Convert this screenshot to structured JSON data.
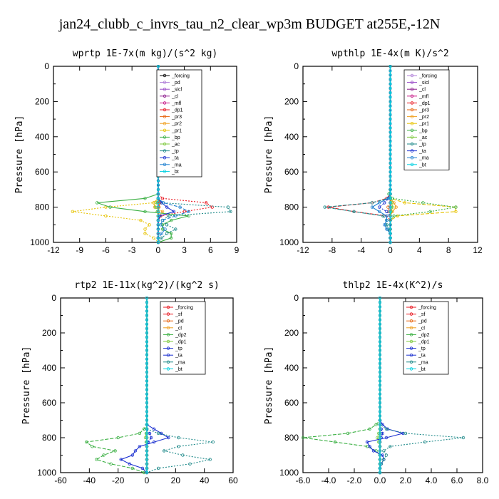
{
  "title": "jan24_clubb_c_invrs_tau_n2_clear_wp3m  BUDGET at255E,-12N",
  "chart_data": [
    {
      "type": "line",
      "title": "wprtp  1E-7x(m kg)/(s^2 kg)",
      "ylabel": "Pressure [hPa]",
      "xlim": [
        -12,
        9
      ],
      "xticks": [
        -12,
        -9,
        -6,
        -3,
        0,
        3,
        6,
        9
      ],
      "xtick_labels": [
        "-12",
        "-9",
        "-6",
        "-3",
        "0",
        "3",
        "6",
        "9"
      ],
      "ylim": [
        1000,
        0
      ],
      "yticks": [
        0,
        200,
        400,
        600,
        800,
        1000
      ],
      "y": [
        725,
        750,
        775,
        800,
        825,
        850,
        875,
        900,
        925,
        950,
        975,
        1000
      ],
      "legend_position": "upper-right-inside",
      "series": [
        {
          "name": "_forcing",
          "color": "#000000",
          "values": [
            0,
            0,
            0,
            0,
            0,
            0,
            0,
            0,
            0,
            0,
            0,
            0
          ]
        },
        {
          "name": "_pd",
          "color": "#b07fd8",
          "values": [
            0,
            0,
            0,
            0,
            0,
            0,
            0,
            0,
            0,
            0,
            0,
            0
          ]
        },
        {
          "name": "_sicl",
          "color": "#9a4cc8",
          "values": [
            0,
            0,
            0,
            0,
            0,
            0,
            0,
            0,
            0,
            0,
            0,
            0
          ]
        },
        {
          "name": "_cl",
          "color": "#8b1a8b",
          "values": [
            0,
            0,
            0,
            0,
            0,
            0,
            0,
            0,
            0,
            0,
            0,
            0
          ]
        },
        {
          "name": "_mfl",
          "color": "#c71585",
          "values": [
            0,
            0,
            0,
            0,
            0,
            0,
            0,
            0,
            0,
            0,
            0,
            0
          ]
        },
        {
          "name": "_dp1",
          "color": "#e8141e",
          "values": [
            0,
            0.5,
            5.5,
            6.2,
            3.0,
            0.3,
            0,
            0,
            0,
            0,
            0,
            0
          ]
        },
        {
          "name": "_pr3",
          "color": "#e8640e",
          "values": [
            0,
            0,
            0.2,
            0.1,
            0,
            0,
            0,
            0,
            0,
            0,
            0,
            0
          ]
        },
        {
          "name": "_pr2",
          "color": "#f0a020",
          "values": [
            0,
            0,
            -0.5,
            -0.4,
            0.5,
            0.2,
            0,
            0,
            0,
            0,
            0,
            0
          ]
        },
        {
          "name": "_pr1",
          "color": "#e6c200",
          "values": [
            0,
            0,
            -0.5,
            -6.0,
            -9.8,
            -6.0,
            -2.0,
            -1.0,
            -1.5,
            -1.5,
            -0.5,
            0
          ]
        },
        {
          "name": "_bp",
          "color": "#3cb044",
          "values": [
            0,
            -1.5,
            -7.0,
            -5.5,
            -1.5,
            3.5,
            1.5,
            0.5,
            0.5,
            1.5,
            1.5,
            0
          ]
        },
        {
          "name": "_ac",
          "color": "#7cc83c",
          "values": [
            0,
            0,
            -0.2,
            -0.3,
            -0.1,
            0,
            0,
            0,
            0,
            0,
            0,
            0
          ]
        },
        {
          "name": "_tp",
          "color": "#1f8a8a",
          "values": [
            0,
            0,
            0.4,
            8.0,
            8.3,
            1.2,
            0.5,
            1.0,
            2.0,
            1.0,
            0.4,
            0
          ]
        },
        {
          "name": "_ta",
          "color": "#1a2fd0",
          "values": [
            0,
            0,
            0.4,
            1.0,
            1.8,
            0.2,
            0,
            0,
            0,
            0,
            0,
            0
          ]
        },
        {
          "name": "_ma",
          "color": "#2080d0",
          "values": [
            0,
            0,
            0.6,
            2.5,
            3.5,
            2.0,
            0.5,
            0.3,
            0.8,
            0.4,
            0,
            0
          ]
        },
        {
          "name": "_bt",
          "color": "#00d0e0",
          "values": [
            0,
            0,
            0,
            0,
            0,
            0,
            0,
            0,
            0,
            0,
            0,
            0
          ]
        }
      ]
    },
    {
      "type": "line",
      "title": "wpthlp  1E-4x(m K)/s^2",
      "ylabel": "Pressure [hPa]",
      "xlim": [
        -12,
        12
      ],
      "xticks": [
        -12,
        -8,
        -4,
        0,
        4,
        8,
        12
      ],
      "xtick_labels": [
        "-12",
        "-8",
        "-4",
        "0",
        "4",
        "8",
        "12"
      ],
      "ylim": [
        1000,
        0
      ],
      "yticks": [
        0,
        200,
        400,
        600,
        800,
        1000
      ],
      "y": [
        700,
        725,
        750,
        775,
        800,
        825,
        850,
        875,
        900,
        925,
        950,
        975,
        1000
      ],
      "legend_position": "upper-right-inside",
      "series": [
        {
          "name": "_forcing",
          "color": "#b07fd8",
          "values": [
            0,
            0,
            0,
            0,
            0,
            0,
            0,
            0,
            0,
            0,
            0,
            0,
            0
          ]
        },
        {
          "name": "_sicl",
          "color": "#9a4cc8",
          "values": [
            0,
            0,
            0,
            0,
            0,
            0,
            0,
            0,
            0,
            0,
            0,
            0,
            0
          ]
        },
        {
          "name": "_cl",
          "color": "#8b1a8b",
          "values": [
            0,
            0,
            0,
            0,
            0,
            0,
            0,
            0,
            0,
            0,
            0,
            0,
            0
          ]
        },
        {
          "name": "_mfl",
          "color": "#c71585",
          "values": [
            0,
            0,
            0,
            0,
            0,
            0,
            0,
            0,
            0,
            0,
            0,
            0,
            0
          ]
        },
        {
          "name": "_dp1",
          "color": "#e8141e",
          "values": [
            0,
            0,
            -0.5,
            -2.5,
            -8.5,
            -5.0,
            -0.5,
            0,
            0,
            0,
            0,
            0,
            0
          ]
        },
        {
          "name": "_pr3",
          "color": "#e8640e",
          "values": [
            0,
            0,
            0,
            0,
            -0.3,
            -0.2,
            0,
            0,
            0,
            0,
            0,
            0,
            0
          ]
        },
        {
          "name": "_pr2",
          "color": "#f0a020",
          "values": [
            0,
            0,
            0,
            0.5,
            0.8,
            0.3,
            0,
            0,
            0,
            0,
            0,
            0,
            0
          ]
        },
        {
          "name": "_pr1",
          "color": "#e6c200",
          "values": [
            0,
            0,
            0,
            2.0,
            9.0,
            9.0,
            1.0,
            0,
            0,
            0,
            0,
            0,
            0
          ]
        },
        {
          "name": "_bp",
          "color": "#3cb044",
          "values": [
            0,
            -0.2,
            0.3,
            4.5,
            9.0,
            5.5,
            0.5,
            0,
            0,
            0,
            0,
            0,
            0
          ]
        },
        {
          "name": "_ac",
          "color": "#7cc83c",
          "values": [
            0,
            0,
            0,
            0.2,
            0.3,
            0.1,
            0,
            0,
            0,
            0,
            0,
            0,
            0
          ]
        },
        {
          "name": "_tp",
          "color": "#1f8a8a",
          "values": [
            0,
            0,
            -0.3,
            -2.5,
            -9.0,
            -5.0,
            -1.0,
            -0.5,
            -0.5,
            -0.3,
            0,
            0,
            0
          ]
        },
        {
          "name": "_ta",
          "color": "#1a2fd0",
          "values": [
            0,
            0,
            -0.2,
            -0.8,
            -1.5,
            -0.5,
            0,
            0,
            0,
            0,
            0,
            0,
            0
          ]
        },
        {
          "name": "_ma",
          "color": "#2080d0",
          "values": [
            0,
            0,
            -0.3,
            -1.5,
            -2.5,
            -1.5,
            -0.5,
            -0.5,
            -0.8,
            -0.5,
            0,
            0,
            0
          ]
        },
        {
          "name": "_bt",
          "color": "#00d0e0",
          "values": [
            0,
            0,
            0,
            0,
            0,
            0,
            0,
            0,
            0,
            0,
            0,
            0,
            0
          ]
        }
      ]
    },
    {
      "type": "line",
      "title": "rtp2  1E-11x(kg^2)/(kg^2 s)",
      "ylabel": "Pressure [hPa]",
      "xlim": [
        -60,
        60
      ],
      "xticks": [
        -60,
        -40,
        -20,
        0,
        20,
        40,
        60
      ],
      "xtick_labels": [
        "-60",
        "-40",
        "-20",
        "0",
        "20",
        "40",
        "60"
      ],
      "ylim": [
        1000,
        0
      ],
      "yticks": [
        0,
        200,
        400,
        600,
        800,
        1000
      ],
      "y": [
        725,
        750,
        775,
        800,
        825,
        850,
        875,
        900,
        925,
        950,
        975,
        1000
      ],
      "legend_position": "upper-right-inside",
      "series": [
        {
          "name": "_forcing",
          "color": "#e8141e",
          "values": [
            0,
            0,
            0,
            0,
            0,
            0,
            0,
            0,
            0,
            0,
            0,
            0
          ]
        },
        {
          "name": "_sf",
          "color": "#e8141e",
          "values": [
            0,
            0,
            0,
            0,
            0,
            0,
            0,
            0,
            0,
            0,
            0,
            0
          ]
        },
        {
          "name": "_pd",
          "color": "#e8640e",
          "values": [
            0,
            0,
            0,
            0,
            0,
            0,
            0,
            0,
            0,
            0,
            0,
            0
          ]
        },
        {
          "name": "_cl",
          "color": "#f0a020",
          "values": [
            0,
            0,
            0,
            0,
            0,
            0,
            0,
            0,
            0,
            0,
            0,
            0
          ]
        },
        {
          "name": "_dp2",
          "color": "#3cb044",
          "values": [
            0,
            -2,
            -5,
            -20,
            -42,
            -38,
            -22,
            -30,
            -35,
            -25,
            -10,
            -2
          ]
        },
        {
          "name": "_dp1",
          "color": "#7cc83c",
          "values": [
            0,
            0,
            -0.5,
            -1,
            -0.5,
            0,
            0,
            0,
            0,
            0,
            0,
            0
          ]
        },
        {
          "name": "_tp",
          "color": "#1a2fd0",
          "values": [
            0,
            5,
            10,
            15,
            5,
            -5,
            -8,
            -10,
            -18,
            -12,
            -3,
            0
          ]
        },
        {
          "name": "_ta",
          "color": "#1a2fd0",
          "values": [
            0,
            0,
            2,
            3,
            1,
            0,
            0,
            0,
            0,
            0,
            0,
            0
          ]
        },
        {
          "name": "_ma",
          "color": "#1f8a8a",
          "values": [
            0,
            0,
            8,
            22,
            46,
            22,
            12,
            25,
            44,
            30,
            8,
            0
          ]
        },
        {
          "name": "_bt",
          "color": "#00d0e0",
          "values": [
            0,
            0,
            0,
            0,
            0,
            0,
            0,
            0,
            0,
            0,
            0,
            0
          ]
        }
      ]
    },
    {
      "type": "line",
      "title": "thlp2  1E-4x(K^2)/s",
      "ylabel": "Pressure [hPa]",
      "xlim": [
        -6,
        8
      ],
      "xticks": [
        -6,
        -4,
        -2,
        0,
        2,
        4,
        6,
        8
      ],
      "xtick_labels": [
        "-6.0",
        "-4.0",
        "-2.0",
        "0.0",
        "2.0",
        "4.0",
        "6.0",
        "8.0"
      ],
      "ylim": [
        1000,
        0
      ],
      "yticks": [
        0,
        200,
        400,
        600,
        800,
        1000
      ],
      "y": [
        700,
        725,
        750,
        775,
        800,
        825,
        850,
        875,
        900,
        925,
        950,
        975,
        1000
      ],
      "legend_position": "upper-right-inside",
      "series": [
        {
          "name": "_forcing",
          "color": "#e8141e",
          "values": [
            0,
            0,
            0,
            0,
            0,
            0,
            0,
            0,
            0,
            0,
            0,
            0,
            0
          ]
        },
        {
          "name": "_sf",
          "color": "#e8141e",
          "values": [
            0,
            0,
            0,
            0,
            0,
            0,
            0,
            0,
            0,
            0,
            0,
            0,
            0
          ]
        },
        {
          "name": "_pd",
          "color": "#e8640e",
          "values": [
            0,
            0,
            0,
            0,
            0,
            0,
            0,
            0,
            0,
            0,
            0,
            0,
            0
          ]
        },
        {
          "name": "_cl",
          "color": "#f0a020",
          "values": [
            0,
            0,
            0,
            0,
            0,
            0,
            0,
            0,
            0,
            0,
            0,
            0,
            0
          ]
        },
        {
          "name": "_dp2",
          "color": "#3cb044",
          "values": [
            0,
            -0.3,
            -0.8,
            -2.5,
            -6.0,
            -3.5,
            -1.0,
            -0.3,
            0,
            0,
            0,
            0,
            0
          ]
        },
        {
          "name": "_dp1",
          "color": "#7cc83c",
          "values": [
            0,
            0,
            0,
            -0.1,
            -0.2,
            -0.1,
            0,
            0,
            0,
            0,
            0,
            0,
            0
          ]
        },
        {
          "name": "_tp",
          "color": "#1a2fd0",
          "values": [
            0,
            0.2,
            0.6,
            1.8,
            0.5,
            -1.0,
            -0.8,
            -0.5,
            0.2,
            0.3,
            0.1,
            0,
            0
          ]
        },
        {
          "name": "_ta",
          "color": "#1a2fd0",
          "values": [
            0,
            0,
            0.1,
            0.2,
            0.1,
            0,
            0,
            0,
            0,
            0,
            0,
            0,
            0
          ]
        },
        {
          "name": "_ma",
          "color": "#1f8a8a",
          "values": [
            0,
            0,
            0.5,
            2.0,
            6.5,
            3.5,
            0.8,
            0.3,
            0.5,
            0.3,
            0.1,
            0,
            0
          ]
        },
        {
          "name": "_bt",
          "color": "#00d0e0",
          "values": [
            0,
            0,
            0,
            0,
            0,
            0,
            0,
            0,
            0,
            0,
            0,
            0,
            0
          ]
        }
      ]
    }
  ]
}
